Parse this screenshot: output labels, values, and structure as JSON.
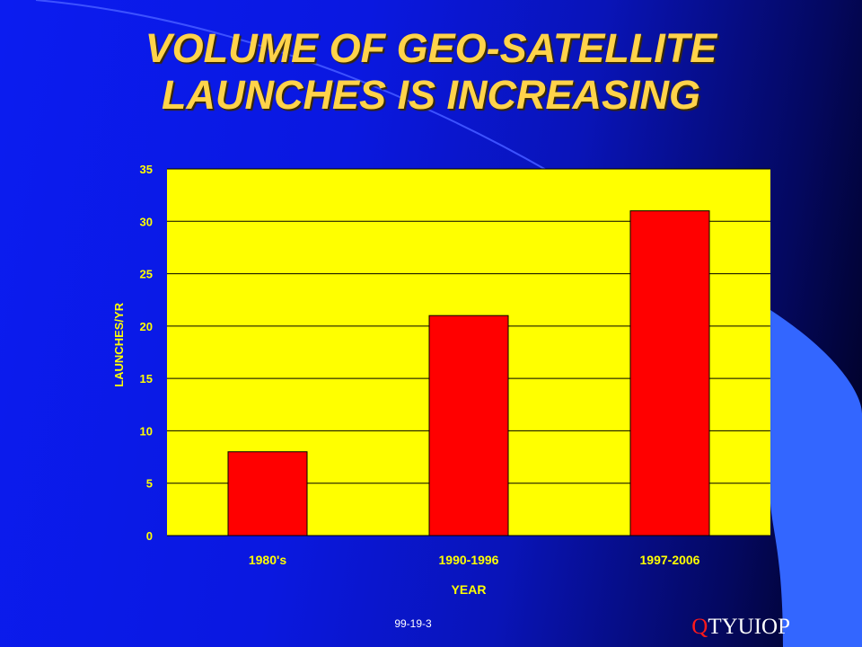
{
  "slide": {
    "title_line1": "VOLUME OF GEO-SATELLITE",
    "title_line2": "LAUNCHES IS INCREASING",
    "footer_code": "99-19-3",
    "brand_first": "Q",
    "brand_rest": "TYUIOP"
  },
  "colors": {
    "title": "#ffd34a",
    "plot_background": "#ffff00",
    "bar": "#ff0000",
    "axis_text": "#ffff00",
    "accent_shape": "#3366ff"
  },
  "chart_data": {
    "type": "bar",
    "categories": [
      "1980's",
      "1990-1996",
      "1997-2006"
    ],
    "values": [
      8,
      21,
      31
    ],
    "xlabel": "YEAR",
    "ylabel": "LAUNCHES/YR",
    "ylim": [
      0,
      35
    ],
    "yticks": [
      0,
      5,
      10,
      15,
      20,
      25,
      30,
      35
    ],
    "grid": true,
    "legend": "none"
  }
}
